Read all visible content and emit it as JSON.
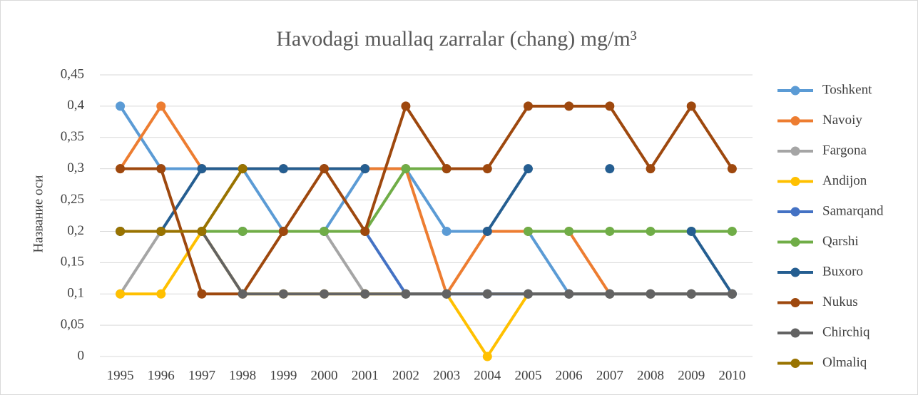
{
  "chart_data": {
    "type": "line",
    "title": "Havodagi muallaq zarralar (chang) mg/m³",
    "y_label": "Название оси",
    "categories": [
      "1995",
      "1996",
      "1997",
      "1998",
      "1999",
      "2000",
      "2001",
      "2002",
      "2003",
      "2004",
      "2005",
      "2006",
      "2007",
      "2008",
      "2009",
      "2010"
    ],
    "ylim": [
      0,
      0.45
    ],
    "yticks": [
      0,
      {
        "value": 0.05,
        "label": "0,05"
      },
      {
        "value": 0.1,
        "label": "0,1"
      },
      {
        "value": 0.15,
        "label": "0,15"
      },
      {
        "value": 0.2,
        "label": "0,2"
      },
      {
        "value": 0.25,
        "label": "0,25"
      },
      {
        "value": 0.3,
        "label": "0,3"
      },
      {
        "value": 0.35,
        "label": "0,35"
      },
      {
        "value": 0.4,
        "label": "0,4"
      },
      {
        "value": 0.45,
        "label": "0,45"
      }
    ],
    "grid": true,
    "legend": "right",
    "series": [
      {
        "name": "Toshkent",
        "color": "#5b9bd5",
        "values": [
          0.4,
          0.3,
          0.3,
          0.3,
          0.2,
          0.2,
          0.3,
          0.3,
          0.2,
          0.2,
          0.2,
          0.1,
          0.1,
          0.1,
          0.1,
          0.1
        ]
      },
      {
        "name": "Navoiy",
        "color": "#ed7d31",
        "values": [
          0.3,
          0.4,
          0.3,
          0.3,
          0.3,
          0.3,
          0.3,
          0.3,
          0.1,
          0.2,
          0.2,
          0.2,
          0.1,
          0.1,
          0.1,
          0.1
        ]
      },
      {
        "name": "Fargona",
        "color": "#a5a5a5",
        "values": [
          0.1,
          0.2,
          0.2,
          0.2,
          0.2,
          0.2,
          0.1,
          0.1,
          0.1,
          0.1,
          0.1,
          0.1,
          0.1,
          0.1,
          0.1,
          0.1
        ]
      },
      {
        "name": "Andijon",
        "color": "#ffc000",
        "values": [
          0.1,
          0.1,
          0.2,
          0.1,
          0.1,
          0.1,
          0.1,
          0.1,
          0.1,
          0,
          0.1,
          0.1,
          0.1,
          0.1,
          0.1,
          0.1
        ]
      },
      {
        "name": "Samarqand",
        "color": "#4472c4",
        "values": [
          0.2,
          0.2,
          0.2,
          0.2,
          0.2,
          0.2,
          0.2,
          0.1,
          0.1,
          0.1,
          0.1,
          0.1,
          0.1,
          0.1,
          0.1,
          0.1
        ]
      },
      {
        "name": "Qarshi",
        "color": "#70ad47",
        "values": [
          0.2,
          0.2,
          0.2,
          0.2,
          0.2,
          0.2,
          0.2,
          0.3,
          0.3,
          null,
          0.2,
          0.2,
          0.2,
          0.2,
          0.2,
          0.2
        ]
      },
      {
        "name": "Buxoro",
        "color": "#255e91",
        "values": [
          0.2,
          0.2,
          0.3,
          0.3,
          0.3,
          0.3,
          0.3,
          null,
          null,
          0.2,
          0.3,
          null,
          0.3,
          null,
          0.2,
          0.1
        ]
      },
      {
        "name": "Nukus",
        "color": "#9e480e",
        "values": [
          0.3,
          0.3,
          0.1,
          0.1,
          0.2,
          0.3,
          0.2,
          0.4,
          0.3,
          0.3,
          0.4,
          0.4,
          0.4,
          0.3,
          0.4,
          0.3
        ]
      },
      {
        "name": "Chirchiq",
        "color": "#636363",
        "values": [
          0.2,
          0.2,
          0.2,
          0.1,
          0.1,
          0.1,
          0.1,
          0.1,
          0.1,
          0.1,
          0.1,
          0.1,
          0.1,
          0.1,
          0.1,
          0.1
        ]
      },
      {
        "name": "Olmaliq",
        "color": "#997300",
        "values": [
          0.2,
          0.2,
          0.2,
          0.3,
          null,
          null,
          null,
          null,
          null,
          null,
          null,
          null,
          null,
          null,
          null,
          null
        ]
      }
    ]
  }
}
